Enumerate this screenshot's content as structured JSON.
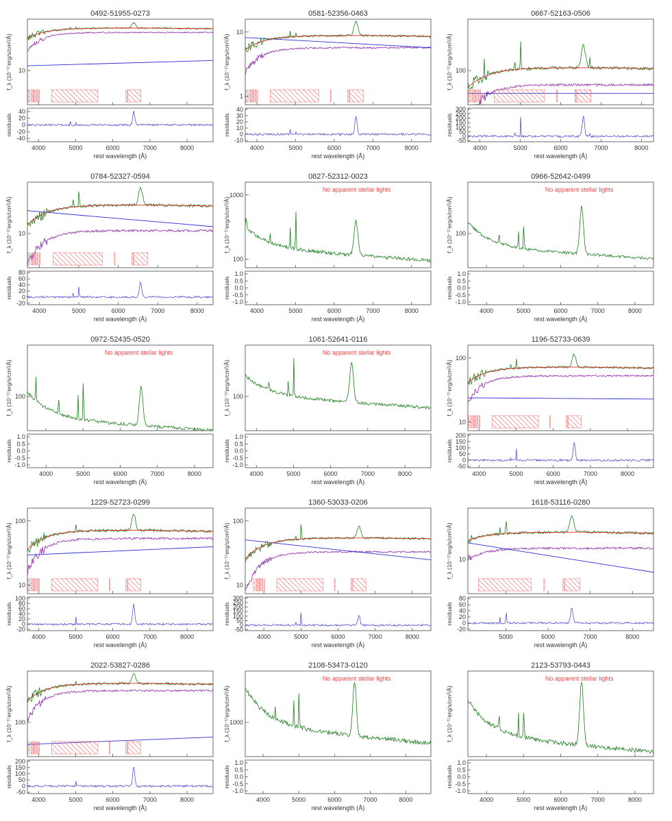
{
  "figure": {
    "xlabel": "rest wavelength (Å)",
    "ylabel_spec": "f_λ (10⁻¹⁷erg/s/cm²/Å)",
    "ylabel_resid": "residuals"
  },
  "colors": {
    "observed": "#1a7f1a",
    "model": "#dc2626",
    "host": "#8e24aa",
    "powerlaw": "#2b2bd6",
    "residual": "#3b3bd8",
    "mask": "#f06060",
    "note": "#ef4444"
  },
  "chart_data": [
    {
      "type": "line",
      "title": "0492-51955-0273",
      "xlim": [
        3700,
        8700
      ],
      "xticks": [
        4000,
        5000,
        6000,
        7000,
        8000
      ],
      "specticks": [
        "10"
      ],
      "specscale": [
        -0.6,
        2.3
      ],
      "resticks": [
        "40",
        "20",
        "0",
        "-20",
        "-40"
      ],
      "resrange": [
        -50,
        50
      ],
      "model": true,
      "level": 2.0,
      "host": 1.85,
      "pl": [
        0.72,
        0.9
      ],
      "masks": [
        [
          3720,
          3760
        ],
        [
          3800,
          3830
        ],
        [
          3850,
          3880
        ],
        [
          3900,
          3920
        ],
        [
          3950,
          3970
        ],
        [
          4000,
          4020
        ],
        [
          4350,
          5600
        ],
        [
          6350,
          6380
        ],
        [
          6400,
          6750
        ]
      ],
      "lines": [
        [
          6563,
          0.18,
          40
        ],
        [
          4861,
          0.05,
          20
        ],
        [
          5007,
          0.06,
          8
        ]
      ],
      "note": ""
    },
    {
      "type": "line",
      "title": "0581-52356-0463",
      "xlim": [
        3700,
        8500
      ],
      "xticks": [
        4000,
        5000,
        6000,
        7000,
        8000
      ],
      "specticks": [
        "10",
        "1"
      ],
      "specscale": [
        -0.3,
        1.8
      ],
      "resticks": [
        "40",
        "30",
        "20",
        "10",
        "0",
        "-10"
      ],
      "resrange": [
        -12,
        42
      ],
      "model": true,
      "level": 1.4,
      "host": 1.1,
      "pl": [
        1.35,
        1.1
      ],
      "masks": [
        [
          3720,
          3760
        ],
        [
          3800,
          3830
        ],
        [
          3850,
          3880
        ],
        [
          3900,
          3920
        ],
        [
          3950,
          3970
        ],
        [
          4000,
          4020
        ],
        [
          4350,
          5600
        ],
        [
          5900,
          5920
        ],
        [
          6350,
          6380
        ],
        [
          6400,
          6750
        ]
      ],
      "lines": [
        [
          6563,
          0.35,
          30
        ],
        [
          4861,
          0.14,
          10
        ],
        [
          5007,
          0.1,
          6
        ]
      ],
      "note": ""
    },
    {
      "type": "line",
      "title": "0667-52163-0506",
      "xlim": [
        3700,
        8300
      ],
      "xticks": [
        4000,
        5000,
        6000,
        7000,
        8000
      ],
      "specticks": [
        "100"
      ],
      "specscale": [
        1.3,
        2.8
      ],
      "resticks": [
        "300",
        "250",
        "200",
        "150",
        "100",
        "50",
        "0",
        "-50"
      ],
      "resrange": [
        -60,
        310
      ],
      "model": true,
      "level": 1.95,
      "host": 1.65,
      "pl": [
        1.5,
        1.5
      ],
      "masks": [
        [
          3720,
          3760
        ],
        [
          3800,
          3830
        ],
        [
          3850,
          3880
        ],
        [
          3900,
          3920
        ],
        [
          3950,
          3970
        ],
        [
          4000,
          4020
        ],
        [
          4350,
          5600
        ],
        [
          5900,
          5920
        ],
        [
          6350,
          6380
        ],
        [
          6400,
          6750
        ]
      ],
      "lines": [
        [
          6563,
          0.4,
          220
        ],
        [
          6720,
          0.2,
          60
        ],
        [
          5007,
          0.5,
          240
        ],
        [
          4861,
          0.2,
          70
        ],
        [
          4100,
          0.3,
          50
        ]
      ],
      "note": ""
    },
    {
      "type": "line",
      "title": "0784-52327-0594",
      "xlim": [
        3700,
        8400
      ],
      "xticks": [
        4000,
        5000,
        6000,
        7000,
        8000
      ],
      "specticks": [
        "10"
      ],
      "specscale": [
        0.3,
        1.8
      ],
      "resticks": [
        "80",
        "60",
        "40",
        "20",
        "0",
        "-20"
      ],
      "resrange": [
        -25,
        85
      ],
      "model": true,
      "level": 1.4,
      "host": 0.95,
      "pl": [
        1.3,
        1.02
      ],
      "masks": [
        [
          3720,
          3760
        ],
        [
          3800,
          3830
        ],
        [
          3850,
          3880
        ],
        [
          3900,
          3920
        ],
        [
          3950,
          3970
        ],
        [
          4000,
          4020
        ],
        [
          4350,
          5600
        ],
        [
          5900,
          5920
        ],
        [
          6350,
          6380
        ],
        [
          6400,
          6750
        ]
      ],
      "lines": [
        [
          6563,
          0.3,
          50
        ],
        [
          5007,
          0.3,
          60
        ],
        [
          4861,
          0.15,
          20
        ]
      ],
      "note": ""
    },
    {
      "type": "line",
      "title": "0827-52312-0023",
      "xlim": [
        3700,
        8500
      ],
      "xticks": [
        4000,
        5000,
        6000,
        7000,
        8000
      ],
      "specticks": [
        "1000",
        "100"
      ],
      "specscale": [
        1.8,
        3.05
      ],
      "model": false,
      "level": 2.1,
      "lines": [
        [
          6563,
          0.5,
          0
        ],
        [
          5007,
          0.6,
          0
        ],
        [
          4861,
          0.3,
          0
        ],
        [
          4340,
          0.15,
          0
        ],
        [
          3727,
          0.2,
          0
        ]
      ],
      "note": "No apparent stellar lights"
    },
    {
      "type": "line",
      "title": "0966-52642-0499",
      "xlim": [
        3500,
        8500
      ],
      "xticks": [
        4000,
        5000,
        6000,
        7000,
        8000
      ],
      "specticks": [
        "100"
      ],
      "specscale": [
        1.25,
        2.7
      ],
      "model": false,
      "level": 1.6,
      "lines": [
        [
          6563,
          0.8,
          0
        ],
        [
          5007,
          0.5,
          0
        ],
        [
          4861,
          0.3,
          0
        ],
        [
          4340,
          0.2,
          0
        ]
      ],
      "note": "No apparent stellar lights"
    },
    {
      "type": "line",
      "title": "0972-52435-0520",
      "xlim": [
        3500,
        8500
      ],
      "xticks": [
        4000,
        5000,
        6000,
        7000,
        8000
      ],
      "specticks": [
        "100"
      ],
      "specscale": [
        1.3,
        2.65
      ],
      "model": false,
      "level": 1.5,
      "lines": [
        [
          6563,
          0.6,
          0
        ],
        [
          5007,
          0.8,
          0
        ],
        [
          4861,
          0.4,
          0
        ],
        [
          4340,
          0.3,
          0
        ],
        [
          3727,
          0.4,
          0
        ]
      ],
      "note": "No apparent stellar lights"
    },
    {
      "type": "line",
      "title": "1061-52641-0116",
      "xlim": [
        3700,
        8700
      ],
      "xticks": [
        4000,
        5000,
        6000,
        7000,
        8000
      ],
      "specticks": [
        "100"
      ],
      "specscale": [
        1.45,
        2.75
      ],
      "model": false,
      "level": 2.0,
      "lines": [
        [
          6563,
          0.6,
          0
        ],
        [
          5007,
          0.6,
          0
        ],
        [
          4861,
          0.3,
          0
        ],
        [
          4340,
          0.15,
          0
        ]
      ],
      "note": "No apparent stellar lights"
    },
    {
      "type": "line",
      "title": "1196-52733-0639",
      "xlim": [
        3700,
        8700
      ],
      "xticks": [
        4000,
        5000,
        6000,
        7000,
        8000
      ],
      "specticks": [
        "100",
        "10"
      ],
      "specscale": [
        0.7,
        2.65
      ],
      "resticks": [
        "200",
        "150",
        "100",
        "50",
        "0",
        "-50"
      ],
      "resrange": [
        -60,
        210
      ],
      "model": true,
      "level": 2.15,
      "host": 1.95,
      "pl": [
        1.45,
        1.42
      ],
      "masks": [
        [
          3720,
          3760
        ],
        [
          3800,
          3830
        ],
        [
          3850,
          3880
        ],
        [
          3900,
          3920
        ],
        [
          3950,
          3970
        ],
        [
          4000,
          4020
        ],
        [
          4350,
          5600
        ],
        [
          5900,
          5920
        ],
        [
          6350,
          6380
        ],
        [
          6400,
          6750
        ]
      ],
      "lines": [
        [
          6563,
          0.3,
          150
        ],
        [
          5007,
          0.2,
          100
        ],
        [
          4861,
          0.12,
          40
        ]
      ],
      "note": ""
    },
    {
      "type": "line",
      "title": "1229-52723-0299",
      "xlim": [
        3700,
        8700
      ],
      "xticks": [
        4000,
        5000,
        6000,
        7000,
        8000
      ],
      "specticks": [
        "100",
        "10"
      ],
      "specscale": [
        0.7,
        2.25
      ],
      "resticks": [
        "100",
        "80",
        "60",
        "40",
        "20",
        "0",
        "-20"
      ],
      "resrange": [
        -25,
        105
      ],
      "model": true,
      "level": 1.85,
      "host": 1.7,
      "pl": [
        1.4,
        1.55
      ],
      "masks": [
        [
          3720,
          3760
        ],
        [
          3800,
          3830
        ],
        [
          3850,
          3880
        ],
        [
          3900,
          3920
        ],
        [
          3950,
          3970
        ],
        [
          4000,
          4020
        ],
        [
          4350,
          5600
        ],
        [
          5900,
          5920
        ],
        [
          6350,
          6380
        ],
        [
          6400,
          6750
        ]
      ],
      "lines": [
        [
          6563,
          0.3,
          80
        ],
        [
          5007,
          0.15,
          30
        ]
      ],
      "note": ""
    },
    {
      "type": "line",
      "title": "1360-53033-0206",
      "xlim": [
        3500,
        8500
      ],
      "xticks": [
        4000,
        5000,
        6000,
        7000,
        8000
      ],
      "specticks": [
        "100",
        "10"
      ],
      "specscale": [
        0.4,
        2.55
      ],
      "resticks": [
        "300",
        "250",
        "200",
        "150",
        "100",
        "50",
        "0",
        "-50"
      ],
      "resrange": [
        -60,
        310
      ],
      "model": true,
      "level": 1.8,
      "host": 1.45,
      "pl": [
        1.75,
        1.25
      ],
      "masks": [
        [
          3720,
          3760
        ],
        [
          3800,
          3830
        ],
        [
          3850,
          3880
        ],
        [
          3900,
          3920
        ],
        [
          3950,
          3970
        ],
        [
          4000,
          4020
        ],
        [
          4350,
          5600
        ],
        [
          5900,
          5920
        ],
        [
          6350,
          6380
        ],
        [
          6400,
          6750
        ]
      ],
      "lines": [
        [
          6563,
          0.3,
          120
        ],
        [
          5007,
          0.5,
          280
        ],
        [
          4861,
          0.1,
          40
        ]
      ],
      "note": ""
    },
    {
      "type": "line",
      "title": "1618-53116-0280",
      "xlim": [
        4100,
        8500
      ],
      "xticks": [
        5000,
        6000,
        7000,
        8000
      ],
      "specticks": [
        "10"
      ],
      "specscale": [
        0.3,
        1.9
      ],
      "resticks": [
        "80",
        "60",
        "40",
        "20",
        "0",
        "-20"
      ],
      "resrange": [
        -25,
        85
      ],
      "model": true,
      "level": 1.45,
      "host": 1.15,
      "pl": [
        1.25,
        0.7
      ],
      "masks": [
        [
          4350,
          5600
        ],
        [
          5900,
          5920
        ],
        [
          6350,
          6380
        ],
        [
          6400,
          6750
        ]
      ],
      "lines": [
        [
          6563,
          0.3,
          50
        ],
        [
          5007,
          0.3,
          70
        ],
        [
          4861,
          0.12,
          20
        ]
      ],
      "note": ""
    },
    {
      "type": "line",
      "title": "2022-53827-0286",
      "xlim": [
        3700,
        8700
      ],
      "xticks": [
        4000,
        5000,
        6000,
        7000,
        8000
      ],
      "specticks": [
        "100"
      ],
      "specscale": [
        0.6,
        2.35
      ],
      "resticks": [
        "200",
        "150",
        "100",
        "50",
        "0",
        "-50"
      ],
      "resrange": [
        -60,
        210
      ],
      "model": true,
      "level": 2.1,
      "host": 1.95,
      "pl": [
        0.85,
        1.0
      ],
      "masks": [
        [
          3720,
          3760
        ],
        [
          3800,
          3830
        ],
        [
          3850,
          3880
        ],
        [
          3900,
          3920
        ],
        [
          3950,
          3970
        ],
        [
          4000,
          4020
        ],
        [
          4350,
          5600
        ],
        [
          5900,
          5920
        ],
        [
          6350,
          6380
        ],
        [
          6400,
          6750
        ]
      ],
      "lines": [
        [
          6563,
          0.2,
          150
        ],
        [
          5007,
          0.05,
          40
        ]
      ],
      "note": ""
    },
    {
      "type": "line",
      "title": "2108-53473-0120",
      "xlim": [
        3500,
        8700
      ],
      "xticks": [
        4000,
        5000,
        6000,
        7000,
        8000
      ],
      "specticks": [
        "1000"
      ],
      "specscale": [
        2.2,
        3.15
      ],
      "model": false,
      "level": 2.55,
      "lines": [
        [
          6563,
          0.6,
          0
        ],
        [
          5007,
          0.55,
          0
        ],
        [
          4861,
          0.3,
          0
        ],
        [
          4340,
          0.15,
          0
        ]
      ],
      "note": "No apparent stellar lights"
    },
    {
      "type": "line",
      "title": "2123-53793-0443",
      "xlim": [
        3500,
        8500
      ],
      "xticks": [
        4000,
        5000,
        6000,
        7000,
        8000
      ],
      "specticks": [],
      "specscale": [
        2.15,
        3.15
      ],
      "model": false,
      "level": 2.4,
      "lines": [
        [
          6563,
          0.75,
          0
        ],
        [
          5007,
          0.4,
          0
        ],
        [
          4861,
          0.3,
          0
        ],
        [
          4340,
          0.2,
          0
        ]
      ],
      "note": "No apparent stellar lights"
    }
  ]
}
